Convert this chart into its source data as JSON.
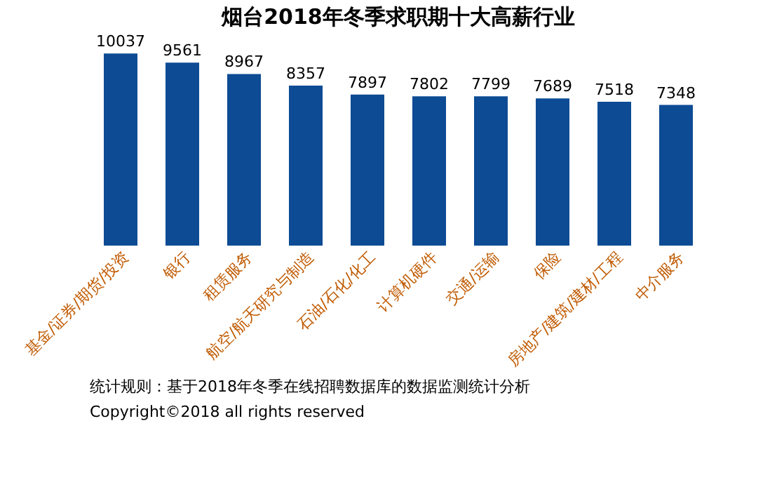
{
  "chart_data": {
    "type": "bar",
    "title": "烟台2018年冬季求职期十大高薪行业",
    "categories": [
      "基金/证券/期货/投资",
      "银行",
      "租赁服务",
      "航空/航天研究与制造",
      "石油/石化/化工",
      "计算机硬件",
      "交通/运输",
      "保险",
      "房地产/建筑/建材/工程",
      "中介服务"
    ],
    "values": [
      10037,
      9561,
      8967,
      8357,
      7897,
      7802,
      7799,
      7689,
      7518,
      7348
    ],
    "color": "#0d4b94",
    "data_labels": true,
    "tick_labels": "x",
    "annotations": [
      "统计规则：基于2018年冬季在线招聘数据库的数据监测统计分析",
      "Copyright©2018 all rights reserved"
    ]
  }
}
